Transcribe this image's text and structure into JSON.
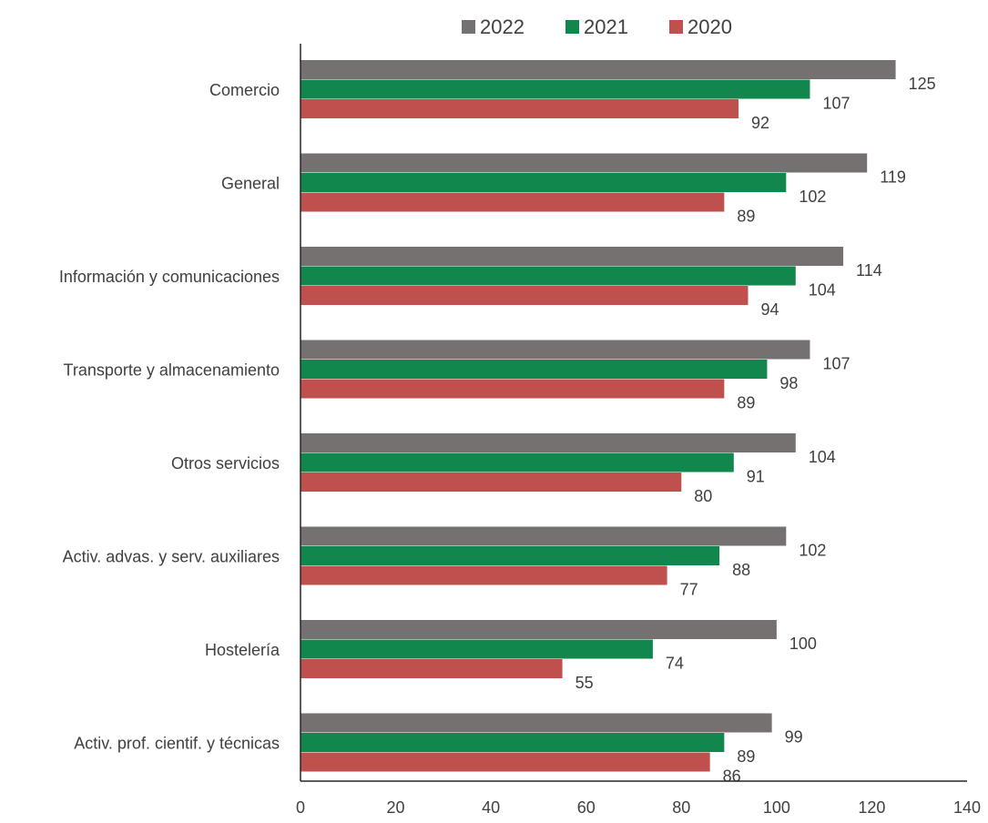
{
  "chart_data": {
    "type": "bar",
    "orientation": "horizontal",
    "title": "",
    "xlabel": "",
    "ylabel": "",
    "xlim": [
      0,
      140
    ],
    "xticks": [
      0,
      20,
      40,
      60,
      80,
      100,
      120,
      140
    ],
    "grid": false,
    "legend_position": "top",
    "categories": [
      "Comercio",
      "General",
      "Información y comunicaciones",
      "Transporte y almacenamiento",
      "Otros servicios",
      "Activ. advas. y serv. auxiliares",
      "Hostelería",
      "Activ. prof. cientif. y técnicas"
    ],
    "series": [
      {
        "name": "2022",
        "color": "#767171",
        "values": [
          125,
          119,
          114,
          107,
          104,
          102,
          100,
          99
        ]
      },
      {
        "name": "2021",
        "color": "#11874d",
        "values": [
          107,
          102,
          104,
          98,
          91,
          88,
          74,
          89
        ]
      },
      {
        "name": "2020",
        "color": "#c0504d",
        "values": [
          92,
          89,
          94,
          89,
          80,
          77,
          55,
          86
        ]
      }
    ]
  }
}
